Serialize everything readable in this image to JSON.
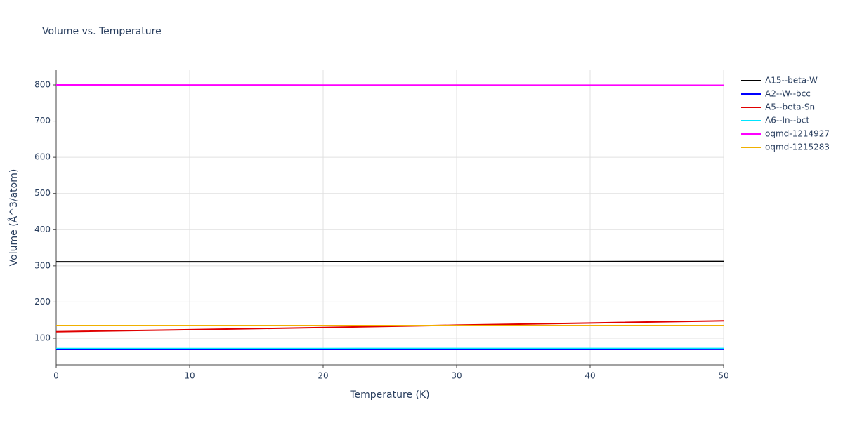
{
  "chart_data": {
    "type": "line",
    "title": "Volume vs. Temperature",
    "x_label": "Temperature (K)",
    "y_label": "Volume (Å^3/atom)",
    "x": [
      0,
      10,
      20,
      30,
      40,
      50
    ],
    "series": [
      {
        "name": "A15--beta-W",
        "color": "#000000",
        "values": [
          311,
          311,
          311.3,
          311.5,
          311.7,
          312
        ]
      },
      {
        "name": "A2--W--bcc",
        "color": "#0000ff",
        "values": [
          69,
          69,
          69,
          69,
          69,
          69.1
        ]
      },
      {
        "name": "A5--beta-Sn",
        "color": "#e00000",
        "values": [
          118,
          123.5,
          129.5,
          136,
          142,
          148
        ]
      },
      {
        "name": "A6--In--bct",
        "color": "#00e5ff",
        "values": [
          71.5,
          71.5,
          71.5,
          71.6,
          71.6,
          71.7
        ]
      },
      {
        "name": "oqmd-1214927",
        "color": "#ff00ff",
        "values": [
          800,
          799.8,
          799.6,
          799.4,
          799.2,
          799
        ]
      },
      {
        "name": "oqmd-1215283",
        "color": "#f0b000",
        "values": [
          135,
          135,
          135,
          135,
          135,
          135
        ]
      }
    ],
    "xlim": [
      0,
      50
    ],
    "xticks": [
      0,
      10,
      20,
      30,
      40,
      50
    ],
    "ylim": [
      26.3,
      840.7
    ],
    "yticks": [
      100,
      200,
      300,
      400,
      500,
      600,
      700,
      800
    ],
    "grid": true,
    "legend": "right"
  }
}
